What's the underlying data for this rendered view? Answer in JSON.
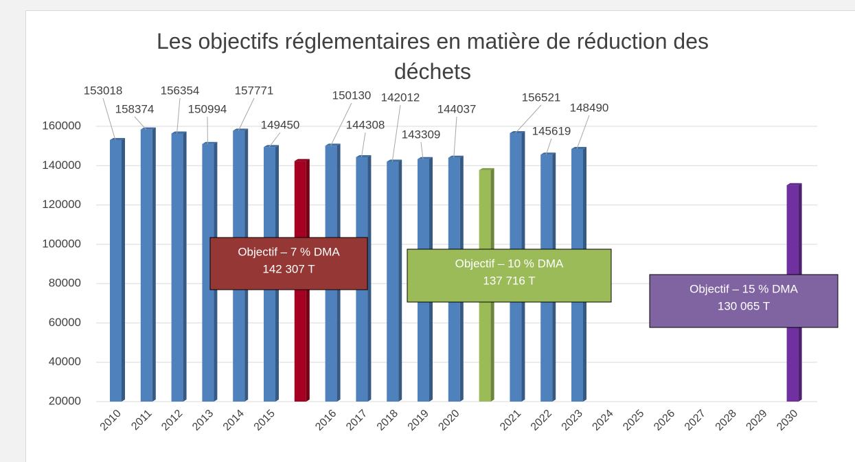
{
  "chart_data": {
    "type": "bar",
    "title": "Les objectifs réglementaires en matière de réduction des déchets",
    "categories": [
      "2010",
      "2011",
      "2012",
      "2013",
      "2014",
      "2015",
      null,
      "2016",
      "2017",
      "2018",
      "2019",
      "2020",
      null,
      "2021",
      "2022",
      "2023",
      "2024",
      "2025",
      "2026",
      "2027",
      "2028",
      "2029",
      "2030"
    ],
    "series": [
      {
        "color": "#4f81bd",
        "data_labels": true,
        "values": [
          153018,
          158374,
          156354,
          150994,
          157771,
          149450,
          null,
          150130,
          144308,
          142012,
          143309,
          144037,
          null,
          156521,
          145619,
          148490,
          null,
          null,
          null,
          null,
          null,
          null,
          null
        ]
      },
      {
        "colors": [
          "#a50021",
          "#9bbb59",
          "#7030a0"
        ],
        "data_labels": false,
        "values": [
          null,
          null,
          null,
          null,
          null,
          null,
          142307,
          null,
          null,
          null,
          null,
          null,
          137716,
          null,
          null,
          null,
          null,
          null,
          null,
          null,
          null,
          null,
          130065
        ]
      }
    ],
    "ylim": [
      20000,
      160000
    ],
    "yticks": [
      20000,
      40000,
      60000,
      80000,
      100000,
      120000,
      140000,
      160000
    ],
    "grid": true,
    "annotations": [
      {
        "lines": [
          "Objectif – 7 % DMA",
          "142 307 T"
        ],
        "color": "#953735"
      },
      {
        "lines": [
          "Objectif – 10 % DMA",
          "137 716 T"
        ],
        "color": "#9bbb59"
      },
      {
        "lines": [
          "Objectif – 15 % DMA",
          "130 065 T"
        ],
        "color": "#8064a2"
      }
    ]
  }
}
